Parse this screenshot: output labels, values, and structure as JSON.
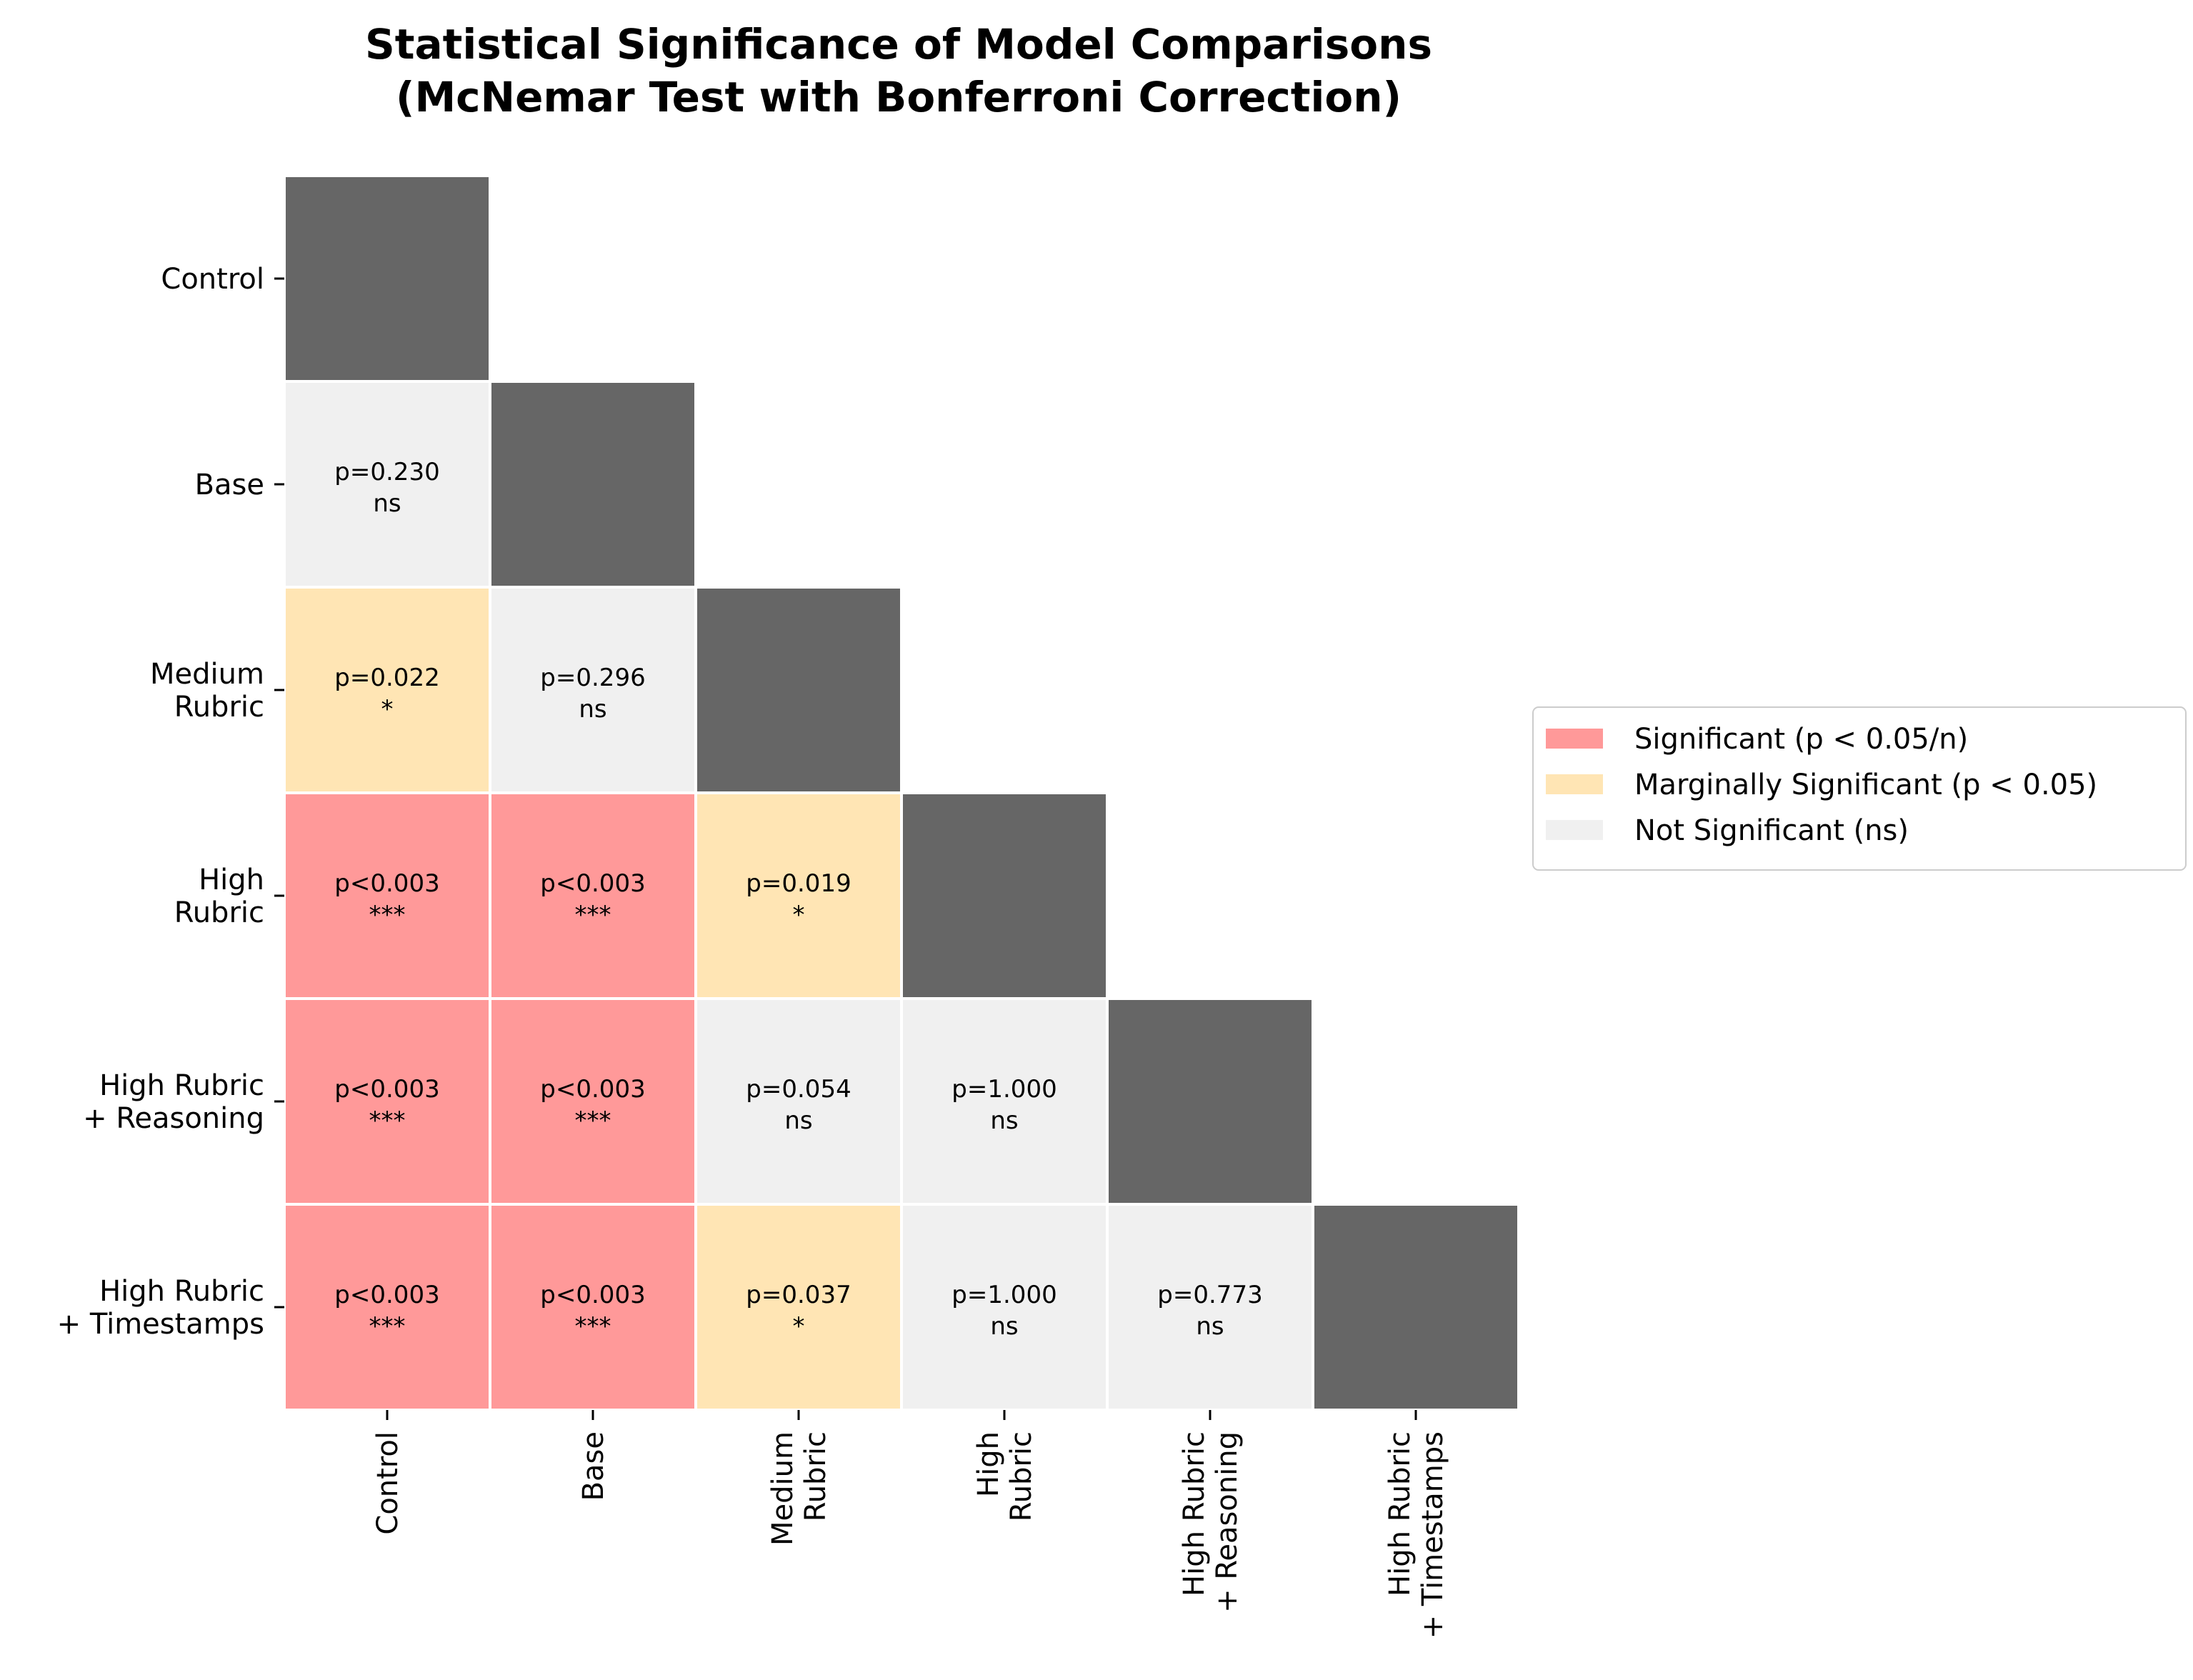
{
  "chart_data": {
    "type": "heatmap",
    "title": "Statistical Significance of Model Comparisons",
    "subtitle": "(McNemar Test with Bonferroni Correction)",
    "rows": [
      {
        "lines": [
          "Control"
        ]
      },
      {
        "lines": [
          "Base"
        ]
      },
      {
        "lines": [
          "Medium",
          "Rubric"
        ]
      },
      {
        "lines": [
          "High",
          "Rubric"
        ]
      },
      {
        "lines": [
          "High Rubric",
          "+ Reasoning"
        ]
      },
      {
        "lines": [
          "High Rubric",
          "+ Timestamps"
        ]
      }
    ],
    "columns": [
      {
        "lines": [
          "Control"
        ]
      },
      {
        "lines": [
          "Base"
        ]
      },
      {
        "lines": [
          "Medium",
          "Rubric"
        ]
      },
      {
        "lines": [
          "High",
          "Rubric"
        ]
      },
      {
        "lines": [
          "High Rubric",
          "+ Reasoning"
        ]
      },
      {
        "lines": [
          "High Rubric",
          "+ Timestamps"
        ]
      }
    ],
    "cells": [
      {
        "row": 1,
        "col": 0,
        "p": "p=0.230",
        "sig": "ns",
        "level": "ns"
      },
      {
        "row": 2,
        "col": 0,
        "p": "p=0.022",
        "sig": "*",
        "level": "marginal"
      },
      {
        "row": 2,
        "col": 1,
        "p": "p=0.296",
        "sig": "ns",
        "level": "ns"
      },
      {
        "row": 3,
        "col": 0,
        "p": "p<0.003",
        "sig": "***",
        "level": "significant"
      },
      {
        "row": 3,
        "col": 1,
        "p": "p<0.003",
        "sig": "***",
        "level": "significant"
      },
      {
        "row": 3,
        "col": 2,
        "p": "p=0.019",
        "sig": "*",
        "level": "marginal"
      },
      {
        "row": 4,
        "col": 0,
        "p": "p<0.003",
        "sig": "***",
        "level": "significant"
      },
      {
        "row": 4,
        "col": 1,
        "p": "p<0.003",
        "sig": "***",
        "level": "significant"
      },
      {
        "row": 4,
        "col": 2,
        "p": "p=0.054",
        "sig": "ns",
        "level": "ns"
      },
      {
        "row": 4,
        "col": 3,
        "p": "p=1.000",
        "sig": "ns",
        "level": "ns"
      },
      {
        "row": 5,
        "col": 0,
        "p": "p<0.003",
        "sig": "***",
        "level": "significant"
      },
      {
        "row": 5,
        "col": 1,
        "p": "p<0.003",
        "sig": "***",
        "level": "significant"
      },
      {
        "row": 5,
        "col": 2,
        "p": "p=0.037",
        "sig": "*",
        "level": "marginal"
      },
      {
        "row": 5,
        "col": 3,
        "p": "p=1.000",
        "sig": "ns",
        "level": "ns"
      },
      {
        "row": 5,
        "col": 4,
        "p": "p=0.773",
        "sig": "ns",
        "level": "ns"
      }
    ],
    "colors": {
      "significant": "#ff9999",
      "marginal": "#ffe5b4",
      "ns": "#f0f0f0",
      "diagonal": "#666666"
    },
    "legend": {
      "placement": "right",
      "entries": [
        {
          "label": "Significant (p < 0.05/n)",
          "level": "significant"
        },
        {
          "label": "Marginally Significant (p < 0.05)",
          "level": "marginal"
        },
        {
          "label": "Not Significant (ns)",
          "level": "ns"
        }
      ]
    }
  }
}
